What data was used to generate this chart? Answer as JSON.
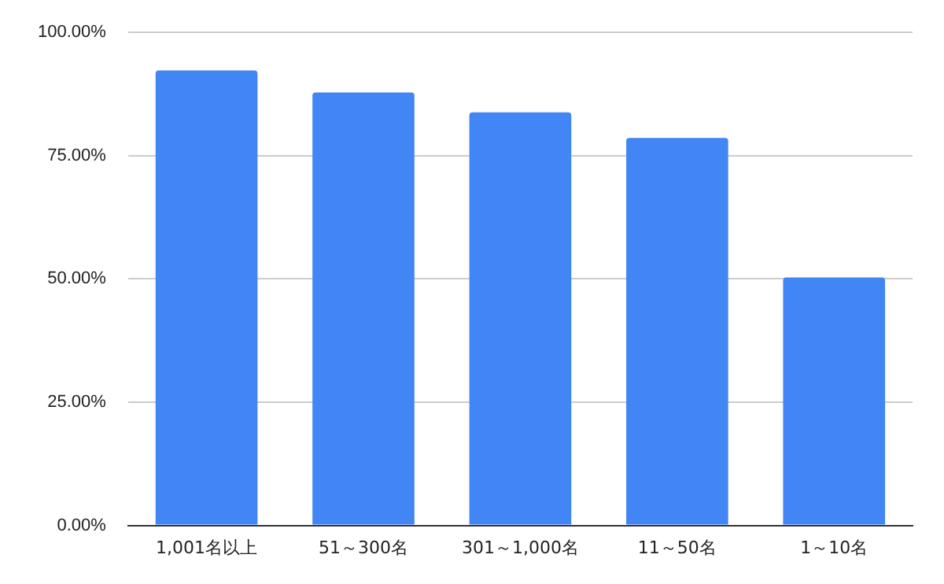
{
  "chart_data": {
    "type": "bar",
    "categories": [
      "1,001名以上",
      "51～300名",
      "301～1,000名",
      "11～50名",
      "1～10名"
    ],
    "values": [
      92.3,
      87.8,
      83.8,
      78.6,
      50.3
    ],
    "color": "#4285f4",
    "ylim": [
      0,
      100
    ],
    "yticks": [
      {
        "value": 0,
        "label": "0.00%"
      },
      {
        "value": 25,
        "label": "25.00%"
      },
      {
        "value": 50,
        "label": "50.00%"
      },
      {
        "value": 75,
        "label": "75.00%"
      },
      {
        "value": 100,
        "label": "100.00%"
      }
    ],
    "grid": "y",
    "legend": false
  }
}
